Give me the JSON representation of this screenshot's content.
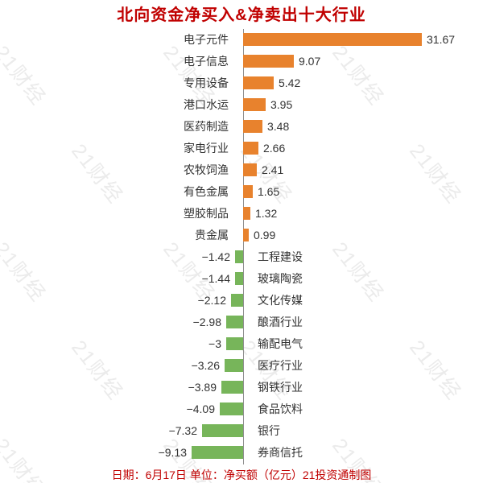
{
  "page": {
    "background": "#ffffff"
  },
  "header": {
    "title": "北向资金净买入&净卖出十大行业",
    "color": "#c00000"
  },
  "footer": {
    "note": "日期：6月17日 单位：净买额（亿元）21投资通制图",
    "color": "#c00000"
  },
  "watermark": {
    "text": "21财经",
    "color": "#ebebeb"
  },
  "chart_data": {
    "type": "bar",
    "orientation": "horizontal",
    "title": "北向资金净买入&净卖出十大行业",
    "categories": [
      "电子元件",
      "电子信息",
      "专用设备",
      "港口水运",
      "医药制造",
      "家电行业",
      "农牧饲渔",
      "有色金属",
      "塑胶制品",
      "贵金属",
      "工程建设",
      "玻璃陶瓷",
      "文化传媒",
      "酿酒行业",
      "输配电气",
      "医疗行业",
      "钢铁行业",
      "食品饮料",
      "银行",
      "券商信托"
    ],
    "values": [
      31.67,
      9.07,
      5.42,
      3.95,
      3.48,
      2.66,
      2.41,
      1.65,
      1.32,
      0.99,
      -1.42,
      -1.44,
      -2.12,
      -2.98,
      -3,
      -3.26,
      -3.89,
      -4.09,
      -7.32,
      -9.13
    ],
    "value_labels": [
      "31.67",
      "9.07",
      "5.42",
      "3.95",
      "3.48",
      "2.66",
      "2.41",
      "1.65",
      "1.32",
      "0.99",
      "−1.42",
      "−1.44",
      "−2.12",
      "−2.98",
      "−3",
      "−3.26",
      "−3.89",
      "−4.09",
      "−7.32",
      "−9.13"
    ],
    "unit": "净买额（亿元）",
    "date": "6月17日",
    "source": "21投资通制图",
    "xlim": [
      -10,
      33
    ],
    "grid": false,
    "legend": false,
    "positive_color": "#e8822d",
    "negative_color": "#77b55a"
  }
}
